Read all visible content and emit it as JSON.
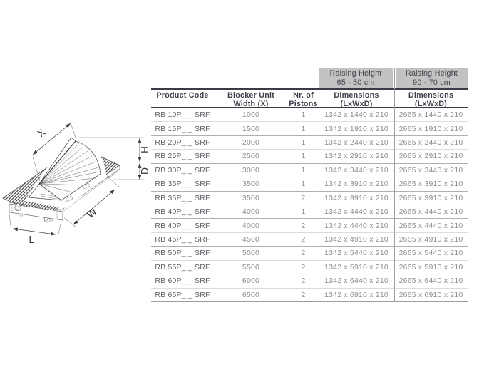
{
  "drawing": {
    "labels": {
      "x": "X",
      "h": "H",
      "d": "D",
      "w": "W",
      "l": "L"
    }
  },
  "table": {
    "group_headers": [
      {
        "line1": "Raising Height",
        "line2": "65 - 50 cm"
      },
      {
        "line1": "Raising Height",
        "line2": "90 - 70 cm"
      }
    ],
    "columns": [
      {
        "line1": "Product Code",
        "line2": ""
      },
      {
        "line1": "Blocker Unit",
        "line2": "Width (X)"
      },
      {
        "line1": "Nr. of",
        "line2": "Pistons"
      },
      {
        "line1": "Dimensions",
        "line2": "(LxWxD)"
      },
      {
        "line1": "Dimensions",
        "line2": "(LxWxD)"
      }
    ],
    "rows": [
      [
        "RB 10P_ _ SRF",
        "1000",
        "1",
        "1342 x 1440 x 210",
        "2665 x 1440 x 210"
      ],
      [
        "RB 15P_ _ SRF",
        "1500",
        "1",
        "1342 x 1910 x 210",
        "2665 x 1910 x 210"
      ],
      [
        "RB 20P_ _ SRF",
        "2000",
        "1",
        "1342 x 2440 x 210",
        "2665 x 2440 x 210"
      ],
      [
        "RB 25P_ _ SRF",
        "2500",
        "1",
        "1342 x 2910 x 210",
        "2665 x 2910 x 210"
      ],
      [
        "RB 30P_ _ SRF",
        "3000",
        "1",
        "1342 x 3440 x 210",
        "2665 x 3440 x 210"
      ],
      [
        "RB 35P_ _ SRF",
        "3500",
        "1",
        "1342 x 3910 x 210",
        "2665 x 3910 x 210"
      ],
      [
        "RB 35P_ _ SRF",
        "3500",
        "2",
        "1342 x 3910 x 210",
        "2665 x 3910 x 210"
      ],
      [
        "RB 40P_ _ SRF",
        "4000",
        "1",
        "1342 x 4440 x 210",
        "2665 x 4440 x 210"
      ],
      [
        "RB 40P_ _ SRF",
        "4000",
        "2",
        "1342 x 4440 x 210",
        "2665 x 4440 x 210"
      ],
      [
        "RB 45P_ _ SRF",
        "4500",
        "2",
        "1342 x 4910 x 210",
        "2665 x 4910 x 210"
      ],
      [
        "RB 50P_ _ SRF",
        "5000",
        "2",
        "1342 x 5440 x 210",
        "2665 x 5440 x 210"
      ],
      [
        "RB 55P_ _ SRF",
        "5500",
        "2",
        "1342 x 5910 x 210",
        "2665 x 5910 x 210"
      ],
      [
        "RB 60P_ _ SRF",
        "6000",
        "2",
        "1342 x 6440 x 210",
        "2665 x 6440 x 210"
      ],
      [
        "RB 65P_ _ SRF",
        "6500",
        "2",
        "1342 x 6910 x 210",
        "2665 x 6910 x 210"
      ]
    ]
  },
  "colors": {
    "accent_dark": "#3b3b47",
    "group_header_bg": "#c2c2c2",
    "row_line": "#dcdcdc",
    "row_line_dark": "#b0b0b0",
    "column_divider": "#9f9f9f",
    "value_text": "#8d8d93",
    "code_text": "#63636b"
  }
}
